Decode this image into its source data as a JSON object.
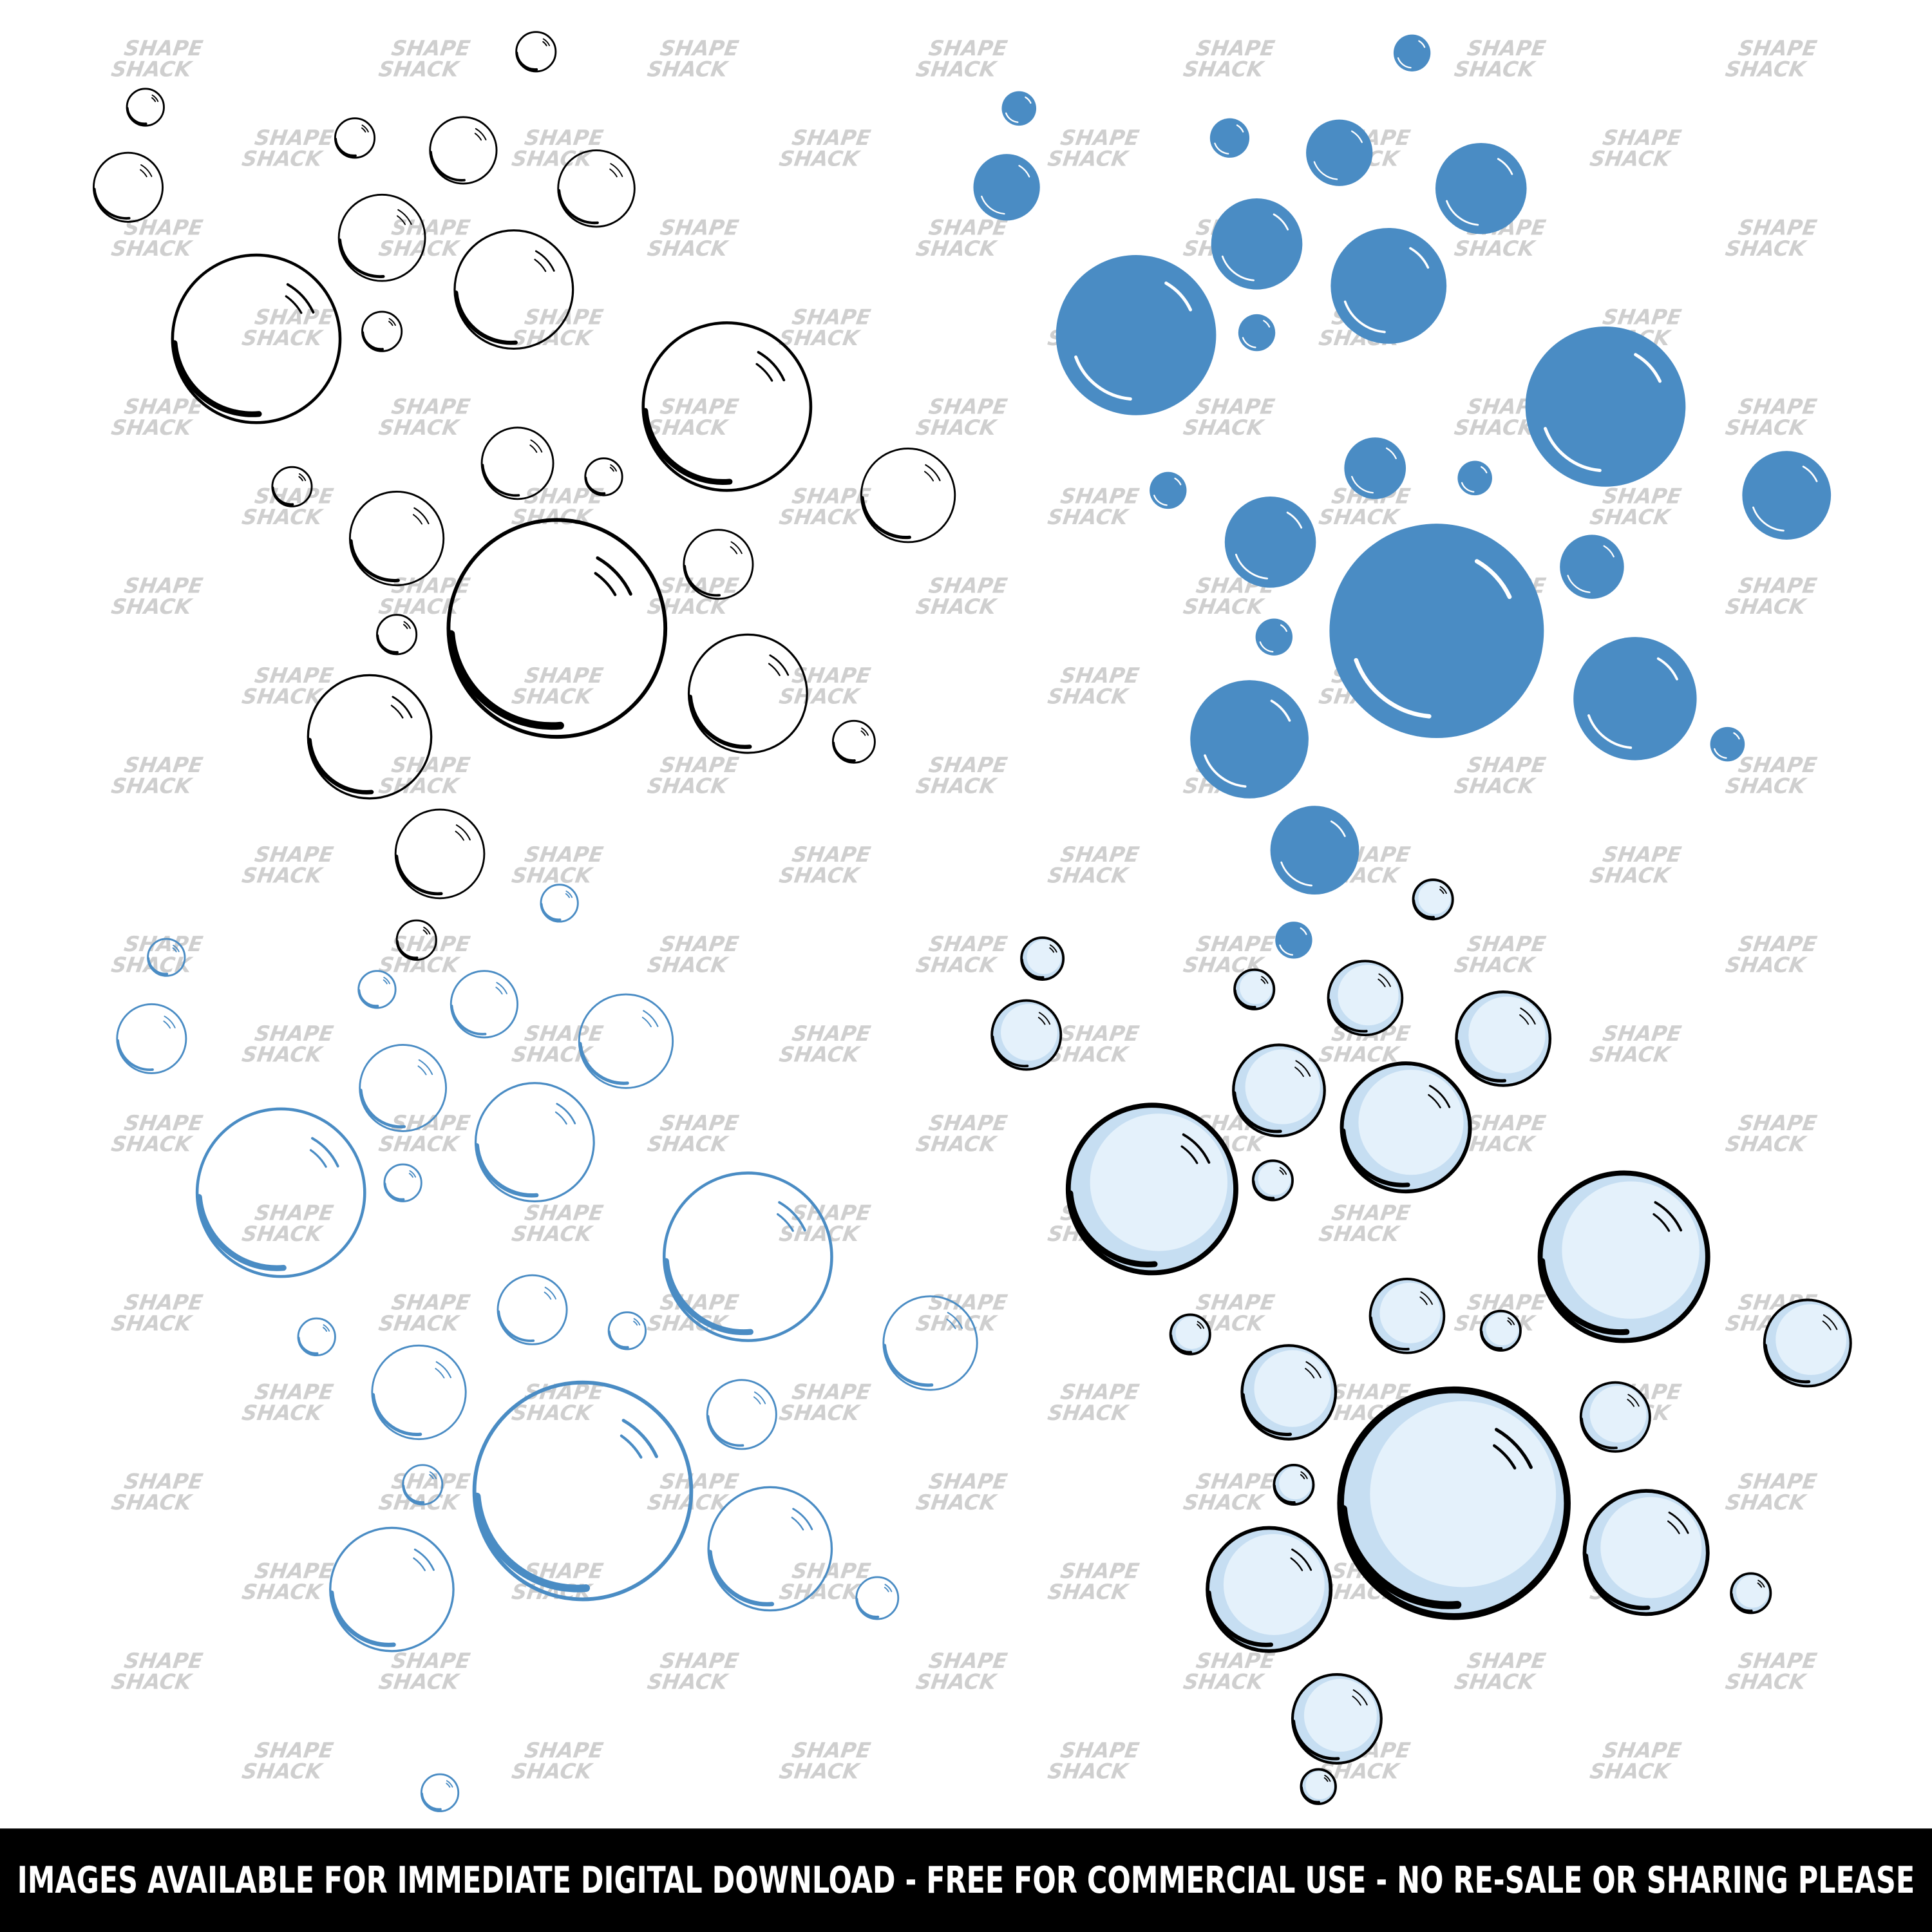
{
  "watermark": {
    "line1": "SHAPE",
    "line2": "SHACK"
  },
  "banner": "IMAGES AVAILABLE FOR IMMEDIATE DIGITAL DOWNLOAD - FREE FOR COMMERCIAL USE - NO RE-SALE OR SHARING PLEASE"
}
